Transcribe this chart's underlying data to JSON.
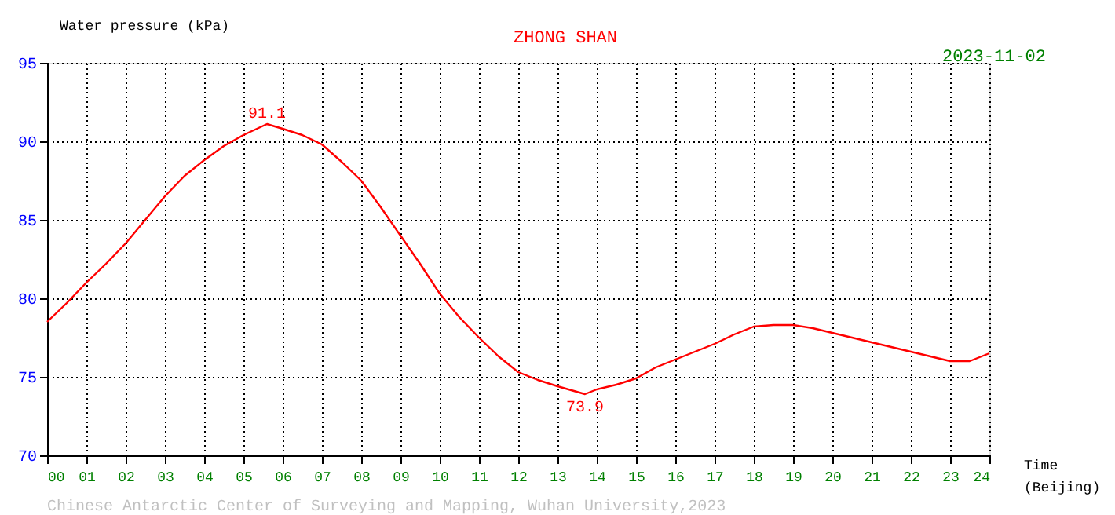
{
  "chart_data": {
    "type": "line",
    "title": "ZHONG SHAN",
    "subtitle": "2023-11-02",
    "xlabel": "Time (Beijing)",
    "ylabel": "Water pressure (kPa)",
    "x": [
      0,
      0.5,
      1,
      1.5,
      2,
      2.5,
      3,
      3.5,
      4,
      4.5,
      5,
      5.6,
      6,
      6.5,
      7,
      7.5,
      8,
      8.5,
      9,
      9.5,
      10,
      10.5,
      11,
      11.5,
      12,
      12.5,
      13,
      13.7,
      14,
      14.5,
      15,
      15.5,
      16,
      16.5,
      17,
      17.5,
      18,
      18.5,
      19,
      19.5,
      20,
      20.5,
      21,
      21.5,
      22,
      22.5,
      23,
      23.5,
      24
    ],
    "series": [
      {
        "color": "#ff0000",
        "values": [
          78.5,
          79.7,
          81.0,
          82.2,
          83.5,
          85.0,
          86.5,
          87.8,
          88.8,
          89.7,
          90.4,
          91.1,
          90.8,
          90.4,
          89.8,
          88.7,
          87.5,
          85.8,
          84.0,
          82.2,
          80.3,
          78.8,
          77.5,
          76.3,
          75.3,
          74.8,
          74.4,
          73.9,
          74.2,
          74.5,
          74.9,
          75.6,
          76.1,
          76.6,
          77.1,
          77.7,
          78.2,
          78.3,
          78.3,
          78.1,
          77.8,
          77.5,
          77.2,
          76.9,
          76.6,
          76.3,
          76.0,
          76.0,
          76.5
        ]
      }
    ],
    "xlim": [
      0,
      24
    ],
    "ylim": [
      70,
      95
    ],
    "xticks": [
      {
        "value": 0,
        "label": "00"
      },
      {
        "value": 1,
        "label": "01"
      },
      {
        "value": 2,
        "label": "02"
      },
      {
        "value": 3,
        "label": "03"
      },
      {
        "value": 4,
        "label": "04"
      },
      {
        "value": 5,
        "label": "05"
      },
      {
        "value": 6,
        "label": "06"
      },
      {
        "value": 7,
        "label": "07"
      },
      {
        "value": 8,
        "label": "08"
      },
      {
        "value": 9,
        "label": "09"
      },
      10,
      11,
      12,
      13,
      14,
      15,
      16,
      17,
      18,
      19,
      20,
      21,
      22,
      23,
      24
    ],
    "yticks": [
      70,
      75,
      80,
      85,
      90,
      95
    ],
    "grid": true,
    "line_style": "solid",
    "marker": "none",
    "annotations": [
      {
        "text": "91.1",
        "x": 5.6,
        "y": 91.1
      },
      {
        "text": "73.9",
        "x": 13.7,
        "y": 73.9
      },
      "Chinese Antarctic Center of Surveying and Mapping, Wuhan University,2023"
    ]
  }
}
